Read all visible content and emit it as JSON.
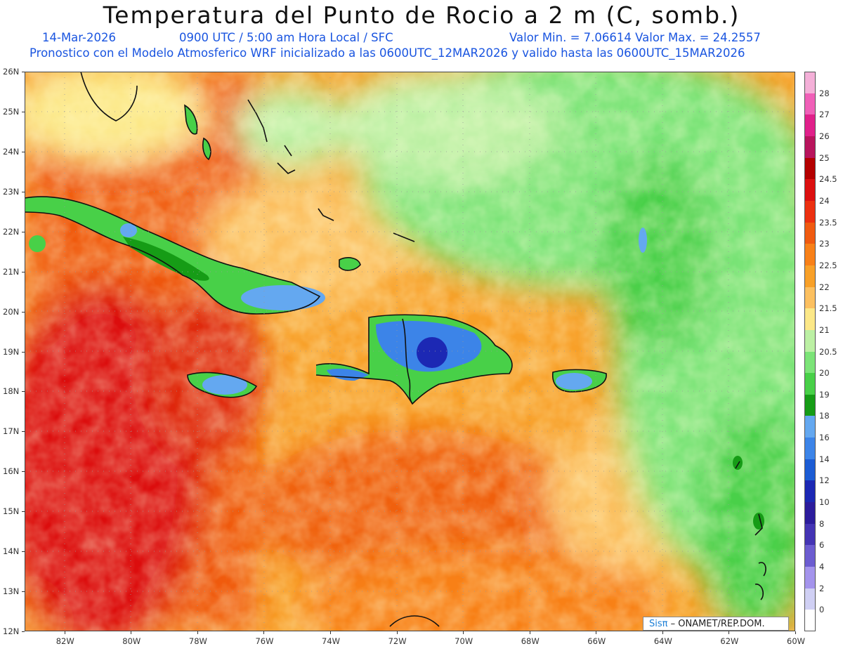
{
  "title": "Temperatura del Punto de Rocio a 2 m (C, somb.)",
  "subtitle": {
    "date": "14-Mar-2026",
    "time": "0900 UTC / 5:00 am Hora Local / SFC",
    "minmax": "Valor Min. = 7.06614  Valor Max. = 24.2557",
    "run": "Pronostico con el Modelo Atmosferico WRF inicializado a las 0600UTC_12MAR2026 y valido hasta las  0600UTC_15MAR2026"
  },
  "axes": {
    "lat_labels": [
      "26N",
      "25N",
      "24N",
      "23N",
      "22N",
      "21N",
      "20N",
      "19N",
      "18N",
      "17N",
      "16N",
      "15N",
      "14N",
      "13N",
      "12N"
    ],
    "lon_labels": [
      "82W",
      "80W",
      "78W",
      "76W",
      "74W",
      "72W",
      "70W",
      "68W",
      "66W",
      "64W",
      "62W",
      "60W"
    ],
    "lat_range": [
      12,
      26
    ],
    "lon_range": [
      -83.2,
      -60
    ]
  },
  "colorbar": {
    "labels": [
      "28",
      "27",
      "26",
      "25",
      "24.5",
      "24",
      "23.5",
      "23",
      "22.5",
      "22",
      "21.5",
      "21",
      "20.5",
      "20",
      "19",
      "18",
      "16",
      "14",
      "12",
      "10",
      "8",
      "6",
      "4",
      "2",
      "0"
    ],
    "colors": [
      "#f4b0d8",
      "#f060b8",
      "#e0208a",
      "#b8145c",
      "#b40000",
      "#dc1010",
      "#ec3010",
      "#f05a10",
      "#f88018",
      "#f8a028",
      "#fcc060",
      "#fce888",
      "#bcf0a4",
      "#7ce478",
      "#48d048",
      "#169c16",
      "#64a8f0",
      "#3c84e8",
      "#1c5cd4",
      "#1c28b4",
      "#2c1c9c",
      "#4434b4",
      "#6c5cd0",
      "#a494ec",
      "#d0d0f4",
      "#ffffff"
    ]
  },
  "credit": {
    "logo": "Sisπ",
    "text": " –  ONAMET/REP.DOM."
  }
}
